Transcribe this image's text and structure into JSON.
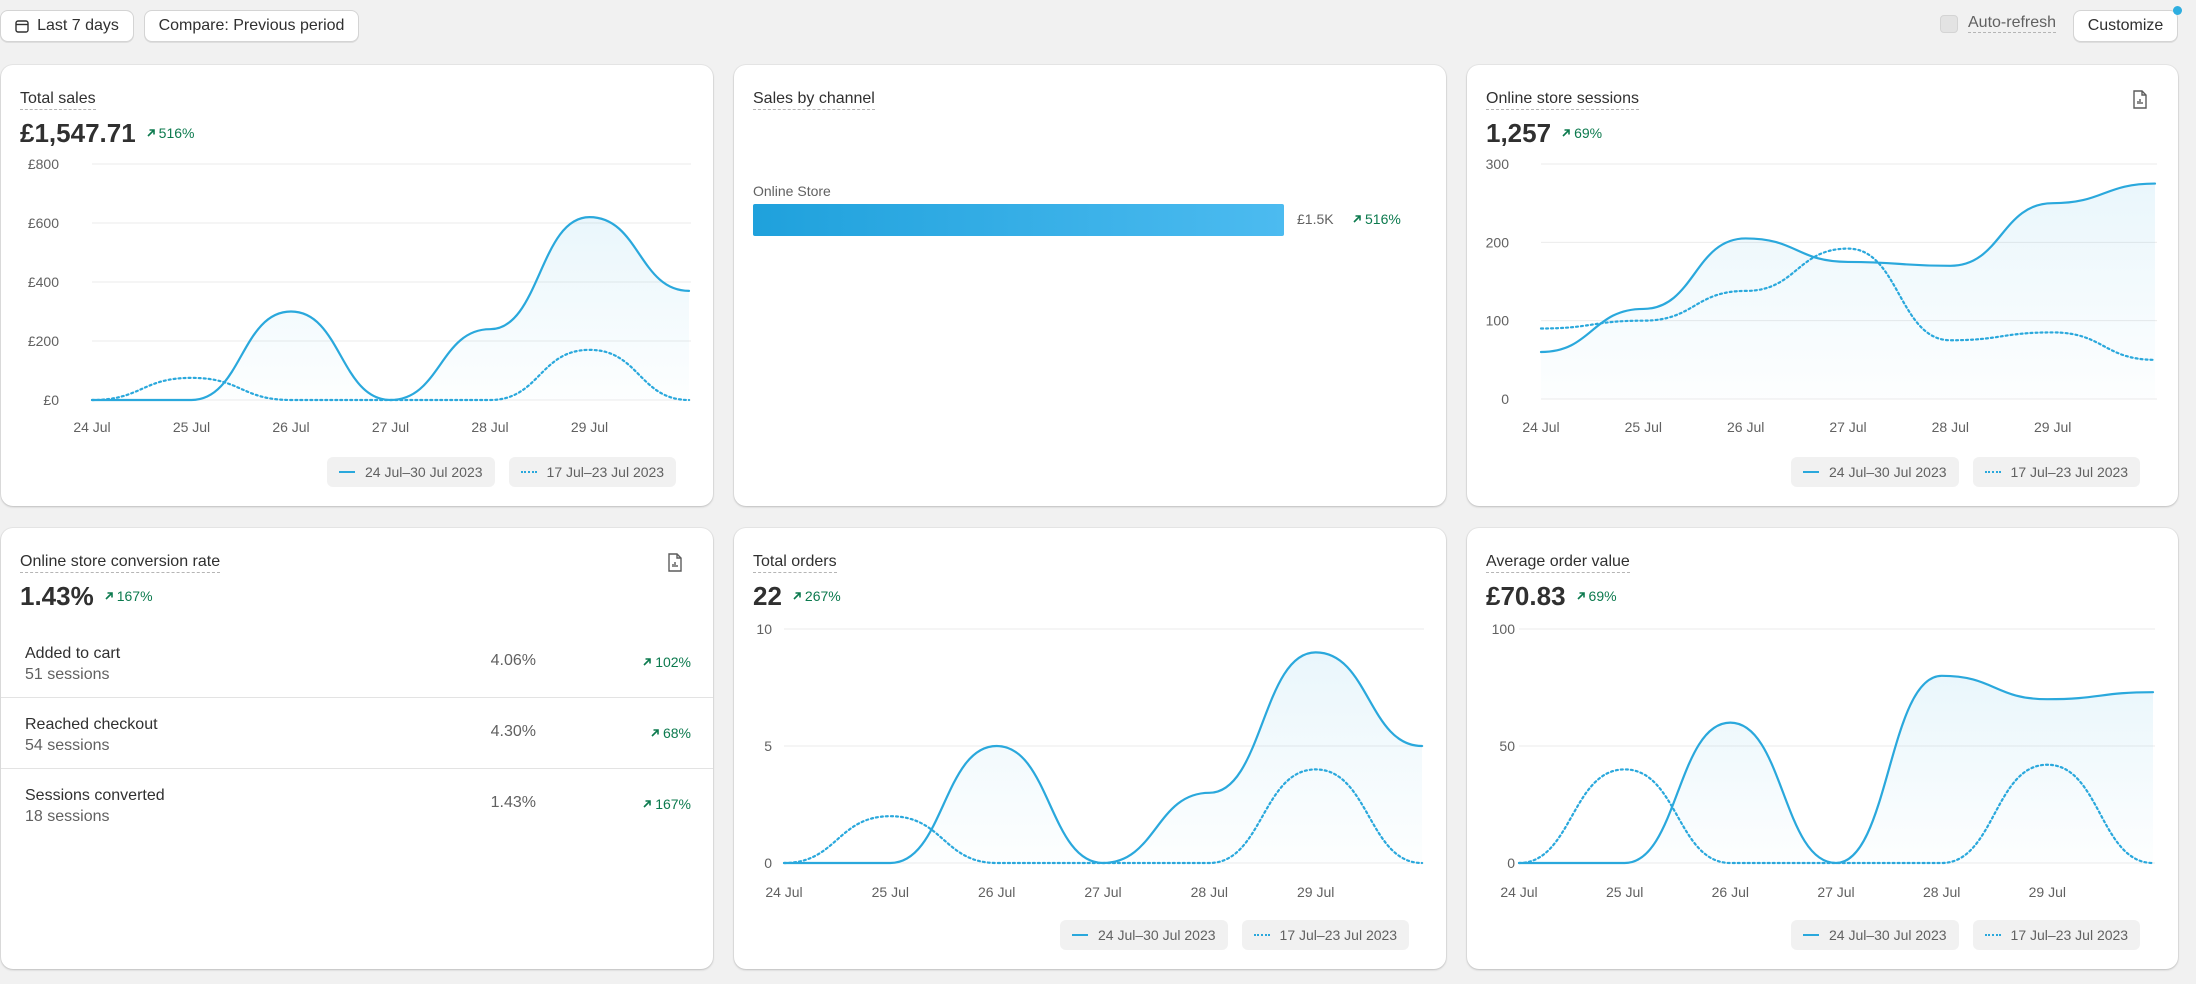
{
  "toolbar": {
    "date_range": "Last 7 days",
    "compare": "Compare: Previous period",
    "auto_refresh": "Auto-refresh",
    "customize": "Customize"
  },
  "legend": {
    "current": "24 Jul–30 Jul 2023",
    "previous": "17 Jul–23 Jul 2023"
  },
  "colors": {
    "accent": "#2aa8dc",
    "positive": "#0c7a4e"
  },
  "cards": {
    "total_sales": {
      "title": "Total sales",
      "value": "£1,547.71",
      "delta": "516%"
    },
    "sales_by_channel": {
      "title": "Sales by channel",
      "channel": "Online Store",
      "amount": "£1.5K",
      "delta": "516%"
    },
    "sessions": {
      "title": "Online store sessions",
      "value": "1,257",
      "delta": "69%"
    },
    "conversion": {
      "title": "Online store conversion rate",
      "value": "1.43%",
      "delta": "167%",
      "rows": [
        {
          "label": "Added to cart",
          "sub": "51 sessions",
          "pct": "4.06%",
          "delta": "102%"
        },
        {
          "label": "Reached checkout",
          "sub": "54 sessions",
          "pct": "4.30%",
          "delta": "68%"
        },
        {
          "label": "Sessions converted",
          "sub": "18 sessions",
          "pct": "1.43%",
          "delta": "167%"
        }
      ]
    },
    "orders": {
      "title": "Total orders",
      "value": "22",
      "delta": "267%"
    },
    "aov": {
      "title": "Average order value",
      "value": "£70.83",
      "delta": "69%"
    }
  },
  "chart_data": [
    {
      "id": "total_sales",
      "type": "line",
      "x": [
        "24 Jul",
        "25 Jul",
        "26 Jul",
        "27 Jul",
        "28 Jul",
        "29 Jul",
        "30 Jul"
      ],
      "xticks": [
        "24 Jul",
        "25 Jul",
        "26 Jul",
        "27 Jul",
        "28 Jul",
        "29 Jul"
      ],
      "yticks": [
        "£0",
        "£200",
        "£400",
        "£600",
        "£800"
      ],
      "ylim": [
        0,
        800
      ],
      "series": [
        {
          "name": "24 Jul–30 Jul 2023",
          "style": "solid",
          "values": [
            0,
            0,
            300,
            0,
            240,
            620,
            370
          ]
        },
        {
          "name": "17 Jul–23 Jul 2023",
          "style": "dotted",
          "values": [
            0,
            75,
            0,
            0,
            0,
            170,
            0
          ]
        }
      ]
    },
    {
      "id": "sessions",
      "type": "line",
      "x": [
        "24 Jul",
        "25 Jul",
        "26 Jul",
        "27 Jul",
        "28 Jul",
        "29 Jul",
        "30 Jul"
      ],
      "xticks": [
        "24 Jul",
        "25 Jul",
        "26 Jul",
        "27 Jul",
        "28 Jul",
        "29 Jul"
      ],
      "yticks": [
        "0",
        "100",
        "200",
        "300"
      ],
      "ylim": [
        0,
        300
      ],
      "series": [
        {
          "name": "24 Jul–30 Jul 2023",
          "style": "solid",
          "values": [
            60,
            115,
            205,
            175,
            170,
            250,
            275
          ]
        },
        {
          "name": "17 Jul–23 Jul 2023",
          "style": "dotted",
          "values": [
            90,
            100,
            138,
            192,
            75,
            85,
            50
          ]
        }
      ]
    },
    {
      "id": "orders",
      "type": "line",
      "x": [
        "24 Jul",
        "25 Jul",
        "26 Jul",
        "27 Jul",
        "28 Jul",
        "29 Jul",
        "30 Jul"
      ],
      "xticks": [
        "24 Jul",
        "25 Jul",
        "26 Jul",
        "27 Jul",
        "28 Jul",
        "29 Jul"
      ],
      "yticks": [
        "0",
        "5",
        "10"
      ],
      "ylim": [
        0,
        10
      ],
      "series": [
        {
          "name": "24 Jul–30 Jul 2023",
          "style": "solid",
          "values": [
            0,
            0,
            5,
            0,
            3,
            9,
            5
          ]
        },
        {
          "name": "17 Jul–23 Jul 2023",
          "style": "dotted",
          "values": [
            0,
            2,
            0,
            0,
            0,
            4,
            0
          ]
        }
      ]
    },
    {
      "id": "aov",
      "type": "line",
      "x": [
        "24 Jul",
        "25 Jul",
        "26 Jul",
        "27 Jul",
        "28 Jul",
        "29 Jul",
        "30 Jul"
      ],
      "xticks": [
        "24 Jul",
        "25 Jul",
        "26 Jul",
        "27 Jul",
        "28 Jul",
        "29 Jul"
      ],
      "yticks": [
        "0",
        "50",
        "100"
      ],
      "ylim": [
        0,
        100
      ],
      "series": [
        {
          "name": "24 Jul–30 Jul 2023",
          "style": "solid",
          "values": [
            0,
            0,
            60,
            0,
            80,
            70,
            73
          ]
        },
        {
          "name": "17 Jul–23 Jul 2023",
          "style": "dotted",
          "values": [
            0,
            40,
            0,
            0,
            0,
            42,
            0
          ]
        }
      ]
    },
    {
      "id": "sales_by_channel",
      "type": "bar",
      "categories": [
        "Online Store"
      ],
      "values": [
        1547.71
      ]
    }
  ]
}
